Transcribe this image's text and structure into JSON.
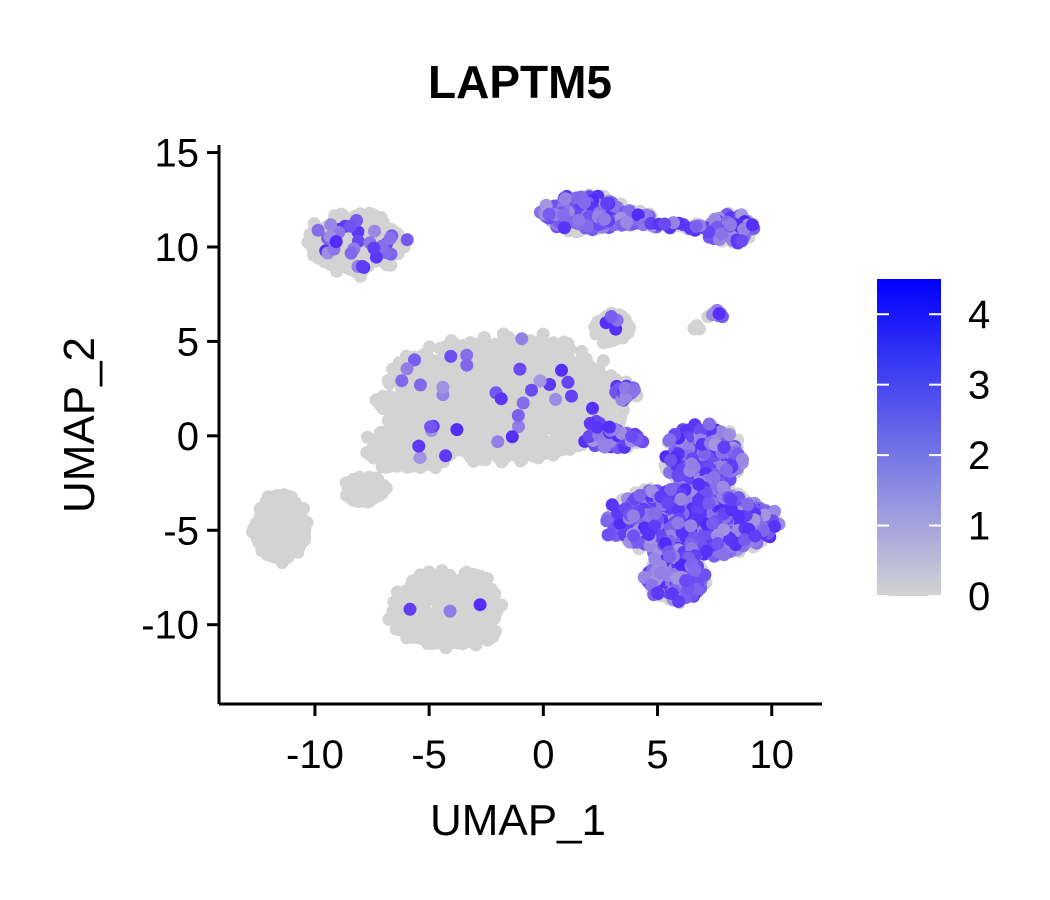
{
  "chart_data": {
    "type": "scatter",
    "title": "LAPTM5",
    "xlabel": "UMAP_1",
    "ylabel": "UMAP_2",
    "xlim": [
      -14.2,
      12.2
    ],
    "ylim": [
      -14.2,
      15.4
    ],
    "x_ticks": [
      -10,
      -5,
      0,
      5,
      10
    ],
    "y_ticks": [
      15,
      10,
      5,
      0,
      -5,
      -10
    ],
    "grid": false,
    "colorbar": {
      "min": 0,
      "max": 4.5,
      "ticks": [
        0,
        1,
        2,
        3,
        4
      ],
      "low_color": "#d3d3d3",
      "high_color": "#0000ff"
    },
    "clusters": [
      {
        "cx": -1.8,
        "cy": 2.0,
        "rx": 5.6,
        "ry": 3.6,
        "n": 1400,
        "expr": 0.03
      },
      {
        "cx": -5.8,
        "cy": -0.6,
        "rx": 2.2,
        "ry": 1.3,
        "n": 200,
        "expr": 0.02
      },
      {
        "cx": -7.8,
        "cy": -2.8,
        "rx": 1.0,
        "ry": 0.8,
        "n": 60,
        "expr": 0.0
      },
      {
        "cx": -8.2,
        "cy": 10.2,
        "rx": 2.3,
        "ry": 1.8,
        "n": 280,
        "expr": 0.12
      },
      {
        "cx": -11.5,
        "cy": -4.8,
        "rx": 1.3,
        "ry": 2.0,
        "n": 220,
        "expr": 0.0
      },
      {
        "cx": -4.2,
        "cy": -9.2,
        "rx": 2.7,
        "ry": 2.3,
        "n": 380,
        "expr": 0.01
      },
      {
        "cx": 1.8,
        "cy": 11.8,
        "rx": 2.0,
        "ry": 1.1,
        "n": 260,
        "expr": 0.6
      },
      {
        "cx": 3.8,
        "cy": 11.6,
        "rx": 1.1,
        "ry": 0.5,
        "n": 40,
        "expr": 0.5
      },
      {
        "cx": 8.1,
        "cy": 11.0,
        "rx": 1.2,
        "ry": 0.9,
        "n": 110,
        "expr": 0.6
      },
      {
        "cx": 3.0,
        "cy": 5.7,
        "rx": 0.9,
        "ry": 0.9,
        "n": 80,
        "expr": 0.05
      },
      {
        "cx": 7.0,
        "cy": -1.2,
        "rx": 1.9,
        "ry": 2.0,
        "n": 380,
        "expr": 0.55
      },
      {
        "cx": 6.5,
        "cy": -4.5,
        "rx": 4.0,
        "ry": 2.0,
        "n": 900,
        "expr": 0.6
      },
      {
        "cx": 5.8,
        "cy": -7.5,
        "rx": 1.4,
        "ry": 1.5,
        "n": 200,
        "expr": 0.6
      },
      {
        "cx": 3.0,
        "cy": -0.2,
        "rx": 1.4,
        "ry": 0.6,
        "n": 70,
        "expr": 0.55
      },
      {
        "cx": 3.6,
        "cy": 2.3,
        "rx": 0.6,
        "ry": 0.7,
        "n": 30,
        "expr": 0.5
      },
      {
        "cx": 7.5,
        "cy": 6.4,
        "rx": 0.4,
        "ry": 0.3,
        "n": 12,
        "expr": 0.6
      },
      {
        "cx": 6.7,
        "cy": 5.7,
        "rx": 0.3,
        "ry": 0.25,
        "n": 6,
        "expr": 0.0
      }
    ]
  }
}
